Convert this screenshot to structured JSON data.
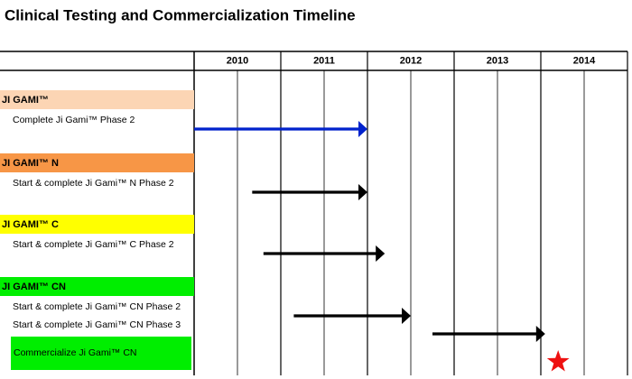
{
  "chart_data": {
    "type": "timeline",
    "title": "Clinical Testing and Commercialization Timeline",
    "categories": [
      "2010",
      "2011",
      "2012",
      "2013",
      "2014"
    ],
    "xlim": [
      2010,
      2015
    ],
    "groups": [
      {
        "name": "JI GAMI™",
        "color": "#fcd5b4",
        "tasks": [
          {
            "name": "Complete Ji Gami™ Phase 2",
            "start": 2010.0,
            "end": 2012.0,
            "color": "#0022cc"
          }
        ]
      },
      {
        "name": "JI GAMI™ N",
        "color": "#f79646",
        "tasks": [
          {
            "name": "Start & complete Ji Gami™ N Phase 2",
            "start": 2010.67,
            "end": 2012.0,
            "color": "#000000"
          }
        ]
      },
      {
        "name": "JI GAMI™ C",
        "color": "#ffff00",
        "tasks": [
          {
            "name": "Start & complete Ji Gami™ C Phase 2",
            "start": 2010.8,
            "end": 2012.2,
            "color": "#000000"
          }
        ]
      },
      {
        "name": "JI GAMI™ CN",
        "color": "#00ee00",
        "tasks": [
          {
            "name": "Start & complete Ji Gami™ CN Phase 2",
            "start": 2011.15,
            "end": 2012.5,
            "color": "#000000"
          },
          {
            "name": "Start & complete Ji Gami™ CN Phase 3",
            "start": 2012.75,
            "end": 2014.05,
            "color": "#000000"
          },
          {
            "name": "Commercialize Ji Gami™ CN",
            "milestone": 2014.2,
            "color": "#ee1111"
          }
        ]
      }
    ]
  }
}
